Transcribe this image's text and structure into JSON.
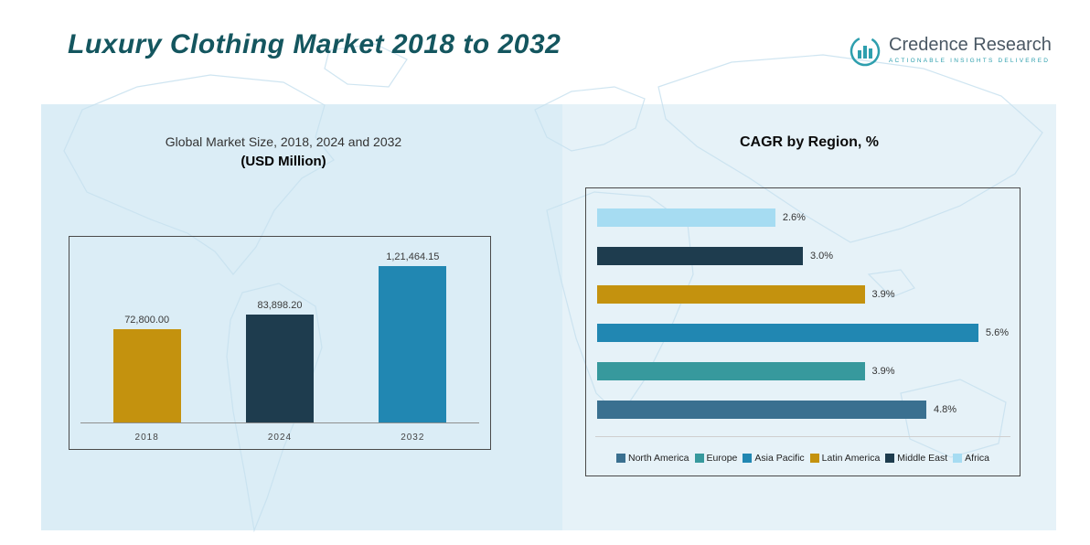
{
  "header": {
    "title": "Luxury Clothing Market 2018 to 2032",
    "brand": {
      "name": "Credence Research",
      "tagline": "Actionable Insights Delivered"
    }
  },
  "colors": {
    "title_teal": "#14565f",
    "logo_teal": "#2e9fae",
    "panel_left_bg": "#dbedf6",
    "panel_right_bg": "#e6f2f8",
    "map_line": "#c7e1ef"
  },
  "chart_data": [
    {
      "type": "bar",
      "orientation": "vertical",
      "title": "Global Market Size, 2018, 2024 and 2032",
      "subtitle": "(USD Million)",
      "categories": [
        "2018",
        "2024",
        "2032"
      ],
      "values": [
        72800.0,
        83898.2,
        121464.15
      ],
      "value_labels": [
        "72,800.00",
        "83,898.20",
        "1,21,464.15"
      ],
      "bar_colors": [
        "#c4920e",
        "#1e3c4e",
        "#2187b2"
      ],
      "ylim": [
        0,
        140000
      ],
      "grid": false
    },
    {
      "type": "bar",
      "orientation": "horizontal",
      "title": "CAGR by Region, %",
      "categories": [
        "Africa",
        "Middle East",
        "Latin America",
        "Asia Pacific",
        "Europe",
        "North America"
      ],
      "values": [
        2.6,
        3.0,
        3.9,
        5.6,
        3.9,
        4.8
      ],
      "value_labels": [
        "2.6%",
        "3.0%",
        "3.9%",
        "5.6%",
        "3.9%",
        "4.8%"
      ],
      "bar_colors": [
        "#a6dcf2",
        "#1e3c4e",
        "#c4920e",
        "#2187b2",
        "#37999d",
        "#3a7090"
      ],
      "xlim": [
        0,
        6
      ],
      "legend_position": "bottom",
      "legend": [
        {
          "label": "North America",
          "color": "#3a7090"
        },
        {
          "label": "Europe",
          "color": "#37999d"
        },
        {
          "label": "Asia Pacific",
          "color": "#2187b2"
        },
        {
          "label": "Latin America",
          "color": "#c4920e"
        },
        {
          "label": "Middle East",
          "color": "#1e3c4e"
        },
        {
          "label": "Africa",
          "color": "#a6dcf2"
        }
      ]
    }
  ]
}
